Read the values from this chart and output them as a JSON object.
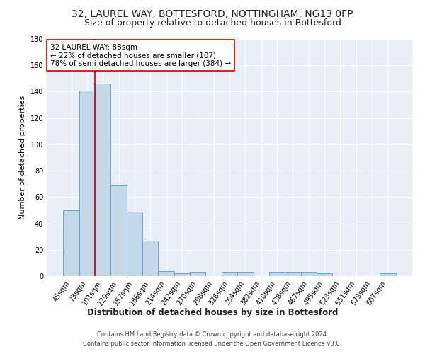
{
  "title1": "32, LAUREL WAY, BOTTESFORD, NOTTINGHAM, NG13 0FP",
  "title2": "Size of property relative to detached houses in Bottesford",
  "xlabel": "Distribution of detached houses by size in Bottesford",
  "ylabel": "Number of detached properties",
  "categories": [
    "45sqm",
    "73sqm",
    "101sqm",
    "129sqm",
    "157sqm",
    "186sqm",
    "214sqm",
    "242sqm",
    "270sqm",
    "298sqm",
    "326sqm",
    "354sqm",
    "382sqm",
    "410sqm",
    "438sqm",
    "467sqm",
    "495sqm",
    "523sqm",
    "551sqm",
    "579sqm",
    "607sqm"
  ],
  "values": [
    50,
    141,
    146,
    69,
    49,
    27,
    4,
    2,
    3,
    0,
    3,
    3,
    0,
    3,
    3,
    3,
    2,
    0,
    0,
    0,
    2
  ],
  "bar_color": "#c5d8e8",
  "bar_edge_color": "#5b9bd5",
  "red_line_x": 1.5,
  "annotation_line1": "32 LAUREL WAY: 88sqm",
  "annotation_line2": "← 22% of detached houses are smaller (107)",
  "annotation_line3": "78% of semi-detached houses are larger (384) →",
  "annotation_box_color": "#ffffff",
  "annotation_box_edge": "#cc0000",
  "red_line_color": "#cc0000",
  "ylim": [
    0,
    180
  ],
  "yticks": [
    0,
    20,
    40,
    60,
    80,
    100,
    120,
    140,
    160,
    180
  ],
  "background_color": "#eaeff7",
  "grid_color": "#ffffff",
  "footer1": "Contains HM Land Registry data © Crown copyright and database right 2024.",
  "footer2": "Contains public sector information licensed under the Open Government Licence v3.0.",
  "title1_fontsize": 10,
  "title2_fontsize": 9,
  "xlabel_fontsize": 8.5,
  "ylabel_fontsize": 8,
  "tick_fontsize": 7,
  "annotation_fontsize": 7.5,
  "footer_fontsize": 6
}
